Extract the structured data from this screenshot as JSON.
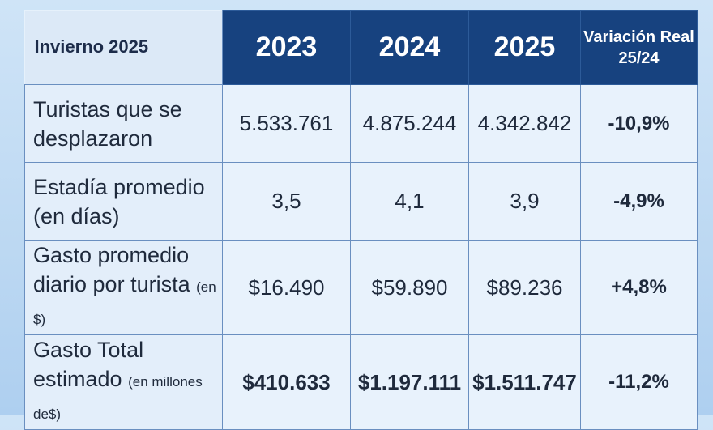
{
  "table": {
    "corner_label": "Invierno 2025",
    "columns": [
      "2023",
      "2024",
      "2025"
    ],
    "variation_header": {
      "line1": "Variación Real",
      "line2": "25/24"
    },
    "rows": [
      {
        "label_line1": "Turistas que se",
        "label_line2": "desplazaron",
        "label_small": "",
        "values": [
          "5.533.761",
          "4.875.244",
          "4.342.842"
        ],
        "variation": "-10,9%"
      },
      {
        "label_line1": "Estadía promedio",
        "label_line2": "(en días)",
        "label_small": "",
        "values": [
          "3,5",
          "4,1",
          "3,9"
        ],
        "variation": "-4,9%"
      },
      {
        "label_line1": "Gasto promedio",
        "label_line2": "diario por turista",
        "label_small": "(en $)",
        "values": [
          "$16.490",
          "$59.890",
          "$89.236"
        ],
        "variation": "+4,8%"
      },
      {
        "label_line1": "Gasto Total",
        "label_line2": "estimado",
        "label_small": "(en millones de$)",
        "values": [
          "$410.633",
          "$1.197.111",
          "$1.511.747"
        ],
        "variation": "-11,2%"
      }
    ]
  },
  "colors": {
    "header_bg": "#17427f",
    "cell_bg": "#e8f2fc",
    "border": "#6a8fc0",
    "page_bg": "#bcd8f2"
  }
}
